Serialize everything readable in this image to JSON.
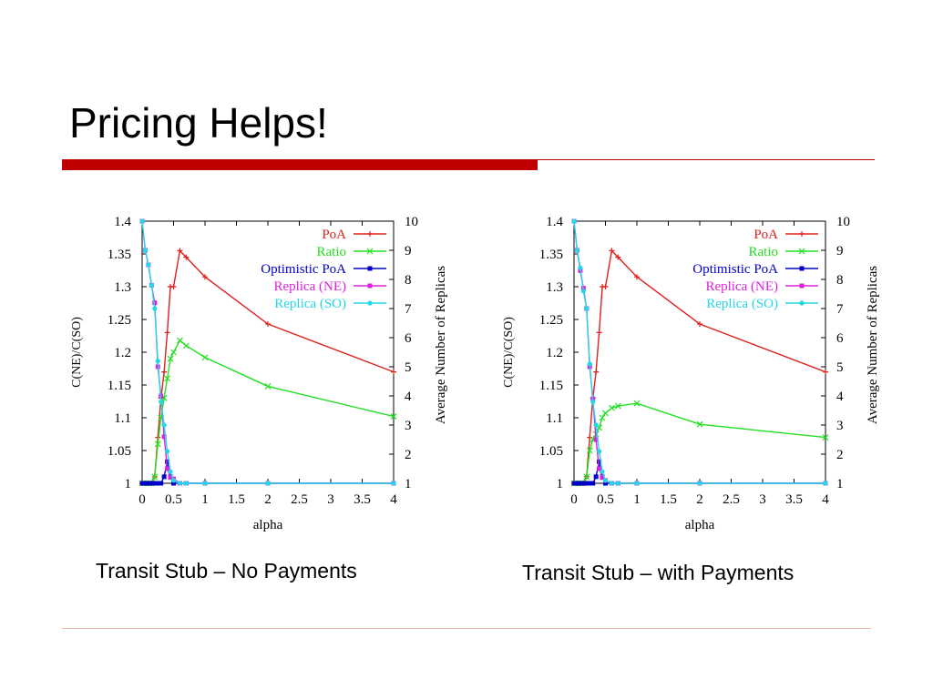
{
  "slide": {
    "title": "Pricing Helps!",
    "accent_color": "#c00000",
    "rule_color": "#c00000",
    "footer_rule_color": "#e8b9a8"
  },
  "chart_data": [
    {
      "type": "line",
      "caption": "Transit Stub – No Payments",
      "xlabel": "alpha",
      "ylabel": "C(NE)/C(SO)",
      "y2label": "Average Number of Replicas",
      "xlim": [
        0,
        4
      ],
      "ylim": [
        1,
        1.4
      ],
      "y2lim": [
        1,
        10
      ],
      "xticks": [
        "0",
        "0.5",
        "1",
        "1.5",
        "2",
        "2.5",
        "3",
        "3.5",
        "4"
      ],
      "yticks": [
        "1",
        "1.05",
        "1.1",
        "1.15",
        "1.2",
        "1.25",
        "1.3",
        "1.35",
        "1.4"
      ],
      "y2ticks": [
        "1",
        "2",
        "3",
        "4",
        "5",
        "6",
        "7",
        "8",
        "9",
        "10"
      ],
      "legend_position": "top-right",
      "grid": false,
      "series": [
        {
          "name": "PoA",
          "axis": "left",
          "color": "#e0201b",
          "marker": "plus",
          "x": [
            0,
            0.05,
            0.1,
            0.15,
            0.2,
            0.25,
            0.3,
            0.35,
            0.4,
            0.45,
            0.5,
            0.6,
            0.7,
            1,
            2,
            4
          ],
          "y": [
            1,
            1,
            1,
            1,
            1.01,
            1.07,
            1.13,
            1.17,
            1.23,
            1.3,
            1.3,
            1.355,
            1.345,
            1.315,
            1.243,
            1.17
          ]
        },
        {
          "name": "Ratio",
          "axis": "left",
          "color": "#22e022",
          "marker": "x",
          "x": [
            0,
            0.05,
            0.1,
            0.15,
            0.2,
            0.25,
            0.3,
            0.35,
            0.4,
            0.45,
            0.5,
            0.6,
            0.7,
            1,
            2,
            4
          ],
          "y": [
            1,
            1,
            1,
            1,
            1.01,
            1.06,
            1.1,
            1.13,
            1.16,
            1.19,
            1.2,
            1.218,
            1.21,
            1.192,
            1.148,
            1.102
          ]
        },
        {
          "name": "Optimistic PoA",
          "axis": "left",
          "color": "#0000c8",
          "marker": "square",
          "x": [
            0,
            0.05,
            0.1,
            0.15,
            0.2,
            0.25,
            0.3,
            0.35,
            0.4,
            0.45,
            0.5,
            0.6,
            0.7,
            1,
            2,
            4
          ],
          "y": [
            1,
            1,
            1,
            1,
            1,
            1,
            1,
            1.01,
            1.033,
            1.01,
            1,
            1,
            1,
            1,
            1,
            1
          ]
        },
        {
          "name": "Replica (NE)",
          "axis": "right",
          "color": "#e020e0",
          "marker": "square",
          "x": [
            0,
            0.05,
            0.1,
            0.15,
            0.2,
            0.25,
            0.3,
            0.35,
            0.4,
            0.45,
            0.5,
            0.6,
            0.7,
            1,
            2,
            4
          ],
          "y": [
            10,
            9,
            8.5,
            7.8,
            7.2,
            5,
            4,
            2.6,
            1.5,
            1.2,
            1.15,
            1,
            1,
            1,
            1,
            1
          ]
        },
        {
          "name": "Replica (SO)",
          "axis": "right",
          "color": "#22d8e8",
          "marker": "circle",
          "x": [
            0,
            0.05,
            0.1,
            0.15,
            0.2,
            0.25,
            0.3,
            0.35,
            0.4,
            0.45,
            0.5,
            0.6,
            0.7,
            1,
            2,
            4
          ],
          "y": [
            10,
            9,
            8.5,
            7.8,
            7,
            5.2,
            3.8,
            3,
            2.1,
            1.4,
            1.1,
            1,
            1,
            1,
            1,
            1
          ]
        }
      ]
    },
    {
      "type": "line",
      "caption": "Transit Stub – with Payments",
      "xlabel": "alpha",
      "ylabel": "C(NE)/C(SO)",
      "y2label": "Average Number of Replicas",
      "xlim": [
        0,
        4
      ],
      "ylim": [
        1,
        1.4
      ],
      "y2lim": [
        1,
        10
      ],
      "xticks": [
        "0",
        "0.5",
        "1",
        "1.5",
        "2",
        "2.5",
        "3",
        "3.5",
        "4"
      ],
      "yticks": [
        "1",
        "1.05",
        "1.1",
        "1.15",
        "1.2",
        "1.25",
        "1.3",
        "1.35",
        "1.4"
      ],
      "y2ticks": [
        "1",
        "2",
        "3",
        "4",
        "5",
        "6",
        "7",
        "8",
        "9",
        "10"
      ],
      "legend_position": "top-right",
      "grid": false,
      "series": [
        {
          "name": "PoA",
          "axis": "left",
          "color": "#e0201b",
          "marker": "plus",
          "x": [
            0,
            0.05,
            0.1,
            0.15,
            0.2,
            0.25,
            0.3,
            0.35,
            0.4,
            0.45,
            0.5,
            0.6,
            0.7,
            1,
            2,
            4
          ],
          "y": [
            1,
            1,
            1,
            1,
            1.01,
            1.07,
            1.13,
            1.17,
            1.23,
            1.3,
            1.3,
            1.355,
            1.345,
            1.315,
            1.243,
            1.17
          ]
        },
        {
          "name": "Ratio",
          "axis": "left",
          "color": "#22e022",
          "marker": "x",
          "x": [
            0,
            0.05,
            0.1,
            0.15,
            0.2,
            0.25,
            0.3,
            0.35,
            0.4,
            0.45,
            0.5,
            0.6,
            0.7,
            1,
            2,
            4
          ],
          "y": [
            1,
            1,
            1,
            1,
            1.01,
            1.05,
            1.067,
            1.075,
            1.085,
            1.1,
            1.107,
            1.115,
            1.118,
            1.122,
            1.09,
            1.07
          ]
        },
        {
          "name": "Optimistic PoA",
          "axis": "left",
          "color": "#0000c8",
          "marker": "square",
          "x": [
            0,
            0.05,
            0.1,
            0.15,
            0.2,
            0.25,
            0.3,
            0.35,
            0.4,
            0.45,
            0.5,
            0.6,
            0.7,
            1,
            2,
            4
          ],
          "y": [
            1,
            1,
            1,
            1,
            1,
            1,
            1,
            1.01,
            1.033,
            1.01,
            1,
            1,
            1,
            1,
            1,
            1
          ]
        },
        {
          "name": "Replica (NE)",
          "axis": "right",
          "color": "#e020e0",
          "marker": "square",
          "x": [
            0,
            0.05,
            0.1,
            0.15,
            0.2,
            0.25,
            0.3,
            0.35,
            0.4,
            0.45,
            0.5,
            0.6,
            0.7,
            1,
            2,
            4
          ],
          "y": [
            10,
            9,
            8.3,
            7.7,
            7,
            5,
            3.9,
            2.5,
            1.5,
            1.2,
            1.1,
            1,
            1,
            1,
            1,
            1
          ]
        },
        {
          "name": "Replica (SO)",
          "axis": "right",
          "color": "#22d8e8",
          "marker": "circle",
          "x": [
            0,
            0.05,
            0.1,
            0.15,
            0.2,
            0.25,
            0.3,
            0.35,
            0.4,
            0.45,
            0.5,
            0.6,
            0.7,
            1,
            2,
            4
          ],
          "y": [
            10,
            9,
            8.4,
            7.6,
            7,
            5.1,
            3.8,
            3,
            2.1,
            1.4,
            1.1,
            1,
            1,
            1,
            1,
            1
          ]
        }
      ]
    }
  ]
}
